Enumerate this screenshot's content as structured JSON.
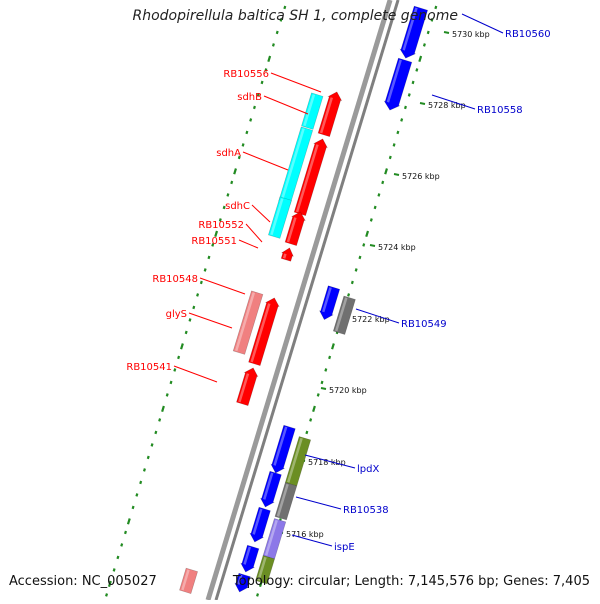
{
  "title": "Rhodopirellula baltica SH 1, complete genome",
  "accession": "Accession: NC_005027",
  "topology": "Topology: circular; Length: 7,145,576 bp; Genes: 7,405",
  "colors": {
    "forward": "#ff0000",
    "forward_light": "#f08080",
    "reverse": "#0000ff",
    "cyan": "#00ffff",
    "gray": "#707070",
    "olive": "#6b8e23",
    "lavender": "#8c78e8",
    "backbone": "#808080",
    "dots": "#228b22",
    "label_forward": "#ff0000",
    "label_reverse": "#0000cc"
  },
  "ticks": [
    "5730 kbp",
    "5728 kbp",
    "5726 kbp",
    "5724 kbp",
    "5722 kbp",
    "5720 kbp",
    "5718 kbp",
    "5716 kbp"
  ],
  "forward_labels": [
    "RB10556",
    "sdhB",
    "sdhA",
    "sdhC",
    "RB10552",
    "RB10551",
    "RB10548",
    "glyS",
    "RB10541"
  ],
  "reverse_labels": [
    "RB10560",
    "RB10558",
    "RB10549",
    "lpdX",
    "RB10538",
    "ispE"
  ]
}
